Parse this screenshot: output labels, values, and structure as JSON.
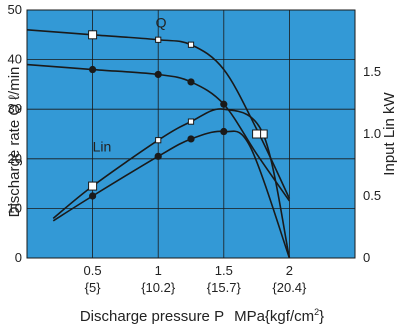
{
  "colors": {
    "plot_background": "#3399d6",
    "curve": "#1a1a1a",
    "grid": "#1a1a1a",
    "text": "#222222"
  },
  "chart_data": {
    "type": "line",
    "title": "",
    "xlabel": "Discharge pressure P",
    "xlabel_unit": "MPa{kgf/cm",
    "xlabel_unit_superscript": "2",
    "xlabel_unit_close": "}",
    "ylabel_left": "Discharge rate Q ℓ/min",
    "ylabel_right": "Input Lin kW",
    "xlim": [
      0,
      2.5
    ],
    "ylim_left": [
      0,
      50
    ],
    "ylim_right": [
      0,
      2.0
    ],
    "grid": true,
    "x_ticks": [
      {
        "value": 0.5,
        "label": "0.5",
        "sublabel": "{5}"
      },
      {
        "value": 1.0,
        "label": "1",
        "sublabel": "{10.2}"
      },
      {
        "value": 1.5,
        "label": "1.5",
        "sublabel": "{15.7}"
      },
      {
        "value": 2.0,
        "label": "2",
        "sublabel": "{20.4}"
      }
    ],
    "y_left_ticks": [
      0,
      10,
      20,
      30,
      40,
      50
    ],
    "y_right_ticks": [
      {
        "value": 0,
        "label": "0"
      },
      {
        "value": 0.5,
        "label": "0.5"
      },
      {
        "value": 1.0,
        "label": "1.0"
      },
      {
        "value": 1.5,
        "label": "1.5"
      }
    ],
    "series_labels": [
      {
        "text": "Q",
        "x": 0.98,
        "y": 46.5
      },
      {
        "text": "Lin",
        "x": 0.5,
        "y": 21.5
      }
    ],
    "series": [
      {
        "axis": "left",
        "marker": "square-open",
        "points": [
          [
            0.0,
            46.0
          ],
          [
            0.5,
            45.0
          ],
          [
            1.0,
            44.0
          ],
          [
            1.25,
            43.0
          ],
          [
            1.5,
            38.0
          ],
          [
            1.75,
            26.0
          ],
          [
            2.0,
            12.0
          ]
        ],
        "markers_at": [
          0.5,
          1.0,
          1.25
        ]
      },
      {
        "axis": "left",
        "marker": "circle-filled",
        "points": [
          [
            0.0,
            39.0
          ],
          [
            0.5,
            38.0
          ],
          [
            1.0,
            37.0
          ],
          [
            1.25,
            35.5
          ],
          [
            1.5,
            31.0
          ],
          [
            1.75,
            21.0
          ],
          [
            2.0,
            11.5
          ]
        ],
        "markers_at": [
          0.5,
          1.0,
          1.25,
          1.5
        ]
      },
      {
        "axis": "right",
        "marker": "square-open",
        "points": [
          [
            0.2,
            0.32
          ],
          [
            0.5,
            0.58
          ],
          [
            1.0,
            0.95
          ],
          [
            1.25,
            1.1
          ],
          [
            1.5,
            1.2
          ],
          [
            1.8,
            1.0
          ],
          [
            2.0,
            0.0
          ]
        ],
        "markers_at": [
          0.5,
          1.0,
          1.25,
          1.8
        ]
      },
      {
        "axis": "right",
        "marker": "circle-filled",
        "points": [
          [
            0.2,
            0.3
          ],
          [
            0.5,
            0.5
          ],
          [
            1.0,
            0.82
          ],
          [
            1.25,
            0.96
          ],
          [
            1.5,
            1.02
          ],
          [
            1.7,
            0.9
          ],
          [
            2.0,
            0.0
          ]
        ],
        "markers_at": [
          0.5,
          1.0,
          1.25,
          1.5
        ]
      },
      {
        "axis": "right",
        "marker": "square-open",
        "points": [
          [
            0.5,
            0.58
          ],
          [
            1.75,
            1.0
          ]
        ],
        "markers_at": [
          1.75
        ],
        "line": false
      }
    ]
  }
}
